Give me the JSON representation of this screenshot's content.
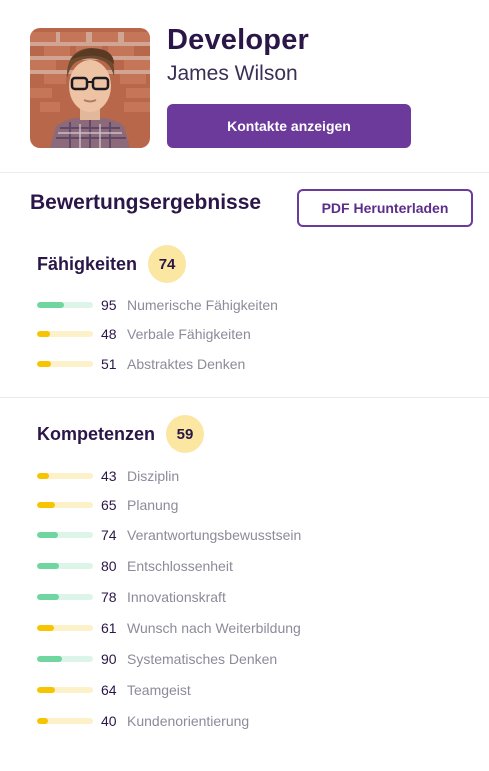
{
  "profile": {
    "role": "Developer",
    "name": "James Wilson",
    "contact_button": "Kontakte anzeigen"
  },
  "assessment": {
    "title": "Bewertungsergebnisse",
    "pdf_button": "PDF Herunterladen"
  },
  "colors": {
    "accent": "#6b3a9a",
    "bar_high": "#6fd6a0",
    "bar_high_track": "#dcf5e8",
    "bar_mid": "#f6c400",
    "bar_mid_track": "#fdf1c9",
    "badge": "#fbe6a2"
  },
  "groups": [
    {
      "title": "Fähigkeiten",
      "score": "74",
      "items": [
        {
          "value": "95",
          "label": "Numerische Fähigkeiten",
          "level": "high"
        },
        {
          "value": "48",
          "label": "Verbale Fähigkeiten",
          "level": "mid"
        },
        {
          "value": "51",
          "label": "Abstraktes Denken",
          "level": "mid"
        }
      ]
    },
    {
      "title": "Kompetenzen",
      "score": "59",
      "items": [
        {
          "value": "43",
          "label": "Disziplin",
          "level": "mid"
        },
        {
          "value": "65",
          "label": "Planung",
          "level": "mid"
        },
        {
          "value": "74",
          "label": "Verantwortungsbewusstsein",
          "level": "high"
        },
        {
          "value": "80",
          "label": "Entschlossenheit",
          "level": "high"
        },
        {
          "value": "78",
          "label": "Innovationskraft",
          "level": "high"
        },
        {
          "value": "61",
          "label": "Wunsch nach Weiterbildung",
          "level": "mid"
        },
        {
          "value": "90",
          "label": "Systematisches Denken",
          "level": "high"
        },
        {
          "value": "64",
          "label": "Teamgeist",
          "level": "mid"
        },
        {
          "value": "40",
          "label": "Kundenorientierung",
          "level": "mid"
        }
      ]
    }
  ]
}
